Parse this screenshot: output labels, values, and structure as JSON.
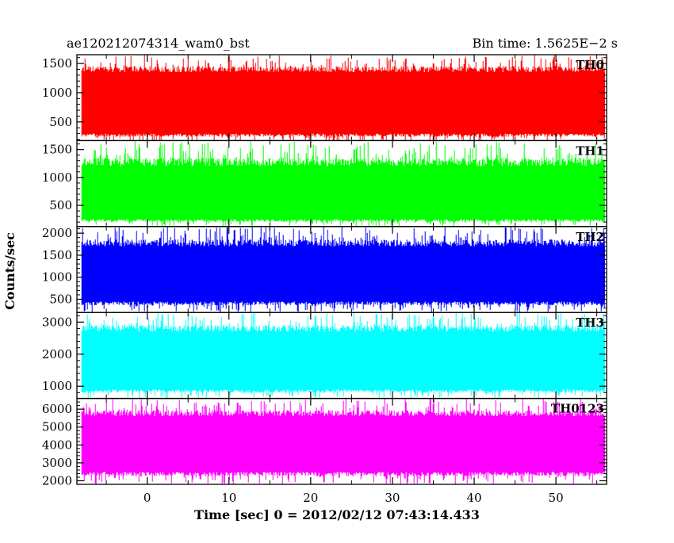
{
  "chart_data": {
    "type": "line",
    "title_left": "ae120212074314_wam0_bst",
    "title_right": "Bin time: 1.5625E−2 s",
    "ylabel": "Counts/sec",
    "xlabel": "Time [sec] 0 = 2012/02/12 07:43:14.433",
    "xlim": [
      -8.6,
      56.2
    ],
    "x_data_range": [
      -8.0,
      56.0
    ],
    "x_ticks": [
      0,
      10,
      20,
      30,
      40,
      50
    ],
    "x_tick_labels": [
      "0",
      "10",
      "20",
      "30",
      "40",
      "50"
    ],
    "grid": false,
    "panels": [
      {
        "name": "TH0",
        "color": "#ff0000",
        "ylim": [
          180,
          1650
        ],
        "y_ticks": [
          500,
          1000,
          1500
        ],
        "y_tick_labels": [
          "500",
          "1000",
          "1500"
        ],
        "envelope_low": [
          300,
          150
        ],
        "envelope_high": [
          1350,
          1650
        ]
      },
      {
        "name": "TH1",
        "color": "#00ff00",
        "ylim": [
          120,
          1660
        ],
        "y_ticks": [
          500,
          1000,
          1500
        ],
        "y_tick_labels": [
          "500",
          "1000",
          "1500"
        ],
        "envelope_low": [
          250,
          120
        ],
        "envelope_high": [
          1200,
          1650
        ]
      },
      {
        "name": "TH2",
        "color": "#0000ff",
        "ylim": [
          200,
          2150
        ],
        "y_ticks": [
          500,
          1000,
          1500,
          2000
        ],
        "y_tick_labels": [
          "500",
          "1000",
          "1500",
          "2000"
        ],
        "envelope_low": [
          450,
          200
        ],
        "envelope_high": [
          1700,
          2150
        ]
      },
      {
        "name": "TH3",
        "color": "#00ffff",
        "ylim": [
          620,
          3300
        ],
        "y_ticks": [
          1000,
          2000,
          3000
        ],
        "y_tick_labels": [
          "1000",
          "2000",
          "3000"
        ],
        "envelope_low": [
          900,
          620
        ],
        "envelope_high": [
          2700,
          3300
        ]
      },
      {
        "name": "TH0123",
        "color": "#ff00ff",
        "ylim": [
          1800,
          6600
        ],
        "y_ticks": [
          2000,
          3000,
          4000,
          5000,
          6000
        ],
        "y_tick_labels": [
          "2000",
          "3000",
          "4000",
          "5000",
          "6000"
        ],
        "envelope_low": [
          2500,
          1800
        ],
        "envelope_high": [
          5600,
          6600
        ]
      }
    ]
  }
}
